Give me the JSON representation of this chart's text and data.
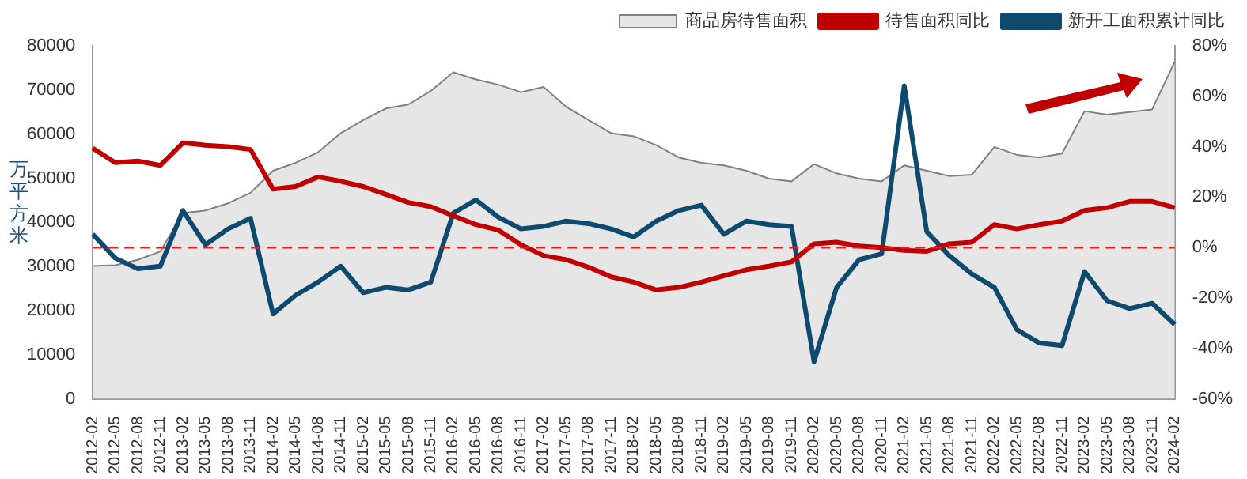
{
  "chart_data": {
    "type": "line",
    "ylabel": "万平方米",
    "categories": [
      "2012-02",
      "2012-05",
      "2012-08",
      "2012-11",
      "2013-02",
      "2013-05",
      "2013-08",
      "2013-11",
      "2014-02",
      "2014-05",
      "2014-08",
      "2014-11",
      "2015-02",
      "2015-05",
      "2015-08",
      "2015-11",
      "2016-02",
      "2016-05",
      "2016-08",
      "2016-11",
      "2017-02",
      "2017-05",
      "2017-08",
      "2017-11",
      "2018-02",
      "2018-05",
      "2018-08",
      "2018-11",
      "2019-02",
      "2019-05",
      "2019-08",
      "2019-11",
      "2020-02",
      "2020-05",
      "2020-08",
      "2020-11",
      "2021-02",
      "2021-05",
      "2021-08",
      "2021-11",
      "2022-02",
      "2022-05",
      "2022-08",
      "2022-11",
      "2023-02",
      "2023-05",
      "2023-08",
      "2023-11",
      "2024-02"
    ],
    "series": [
      {
        "name": "商品房待售面积",
        "type": "area",
        "axis": "y",
        "color": "#e6e6e6",
        "values": [
          30100,
          30300,
          31500,
          33400,
          42100,
          42700,
          44300,
          46700,
          51700,
          53500,
          55900,
          60200,
          63200,
          65800,
          66700,
          69800,
          74000,
          72400,
          71200,
          69500,
          70700,
          66200,
          63200,
          60200,
          59500,
          57500,
          54700,
          53500,
          52900,
          51700,
          49900,
          49300,
          53200,
          51100,
          49900,
          49300,
          52900,
          51700,
          50500,
          50800,
          57100,
          55300,
          54700,
          55600,
          65200,
          64400,
          65000,
          65600,
          76400
        ]
      },
      {
        "name": "待售面积同比",
        "axis": "y2",
        "color": "#c00000",
        "values": [
          39.4,
          33.7,
          34.3,
          32.6,
          41.5,
          40.6,
          40.0,
          38.9,
          23.2,
          24.2,
          28.0,
          26.3,
          24.2,
          21.1,
          17.9,
          16.2,
          12.6,
          9.1,
          6.9,
          1.1,
          -3.2,
          -4.8,
          -7.8,
          -11.6,
          -13.7,
          -16.8,
          -15.8,
          -13.7,
          -11.2,
          -8.8,
          -7.4,
          -5.7,
          1.5,
          2.1,
          0.6,
          0,
          -1.1,
          -1.5,
          1.5,
          2.1,
          9.1,
          7.4,
          9.1,
          10.5,
          14.7,
          15.8,
          18.3,
          18.3,
          15.8
        ]
      },
      {
        "name": "新开工面积累计同比",
        "axis": "y2",
        "color": "#0e4a6e",
        "values": [
          5.3,
          -4.2,
          -8.4,
          -7.4,
          14.7,
          1.1,
          7.4,
          11.6,
          -26.3,
          -18.9,
          -13.7,
          -7.4,
          -17.9,
          -15.8,
          -16.8,
          -13.7,
          13.7,
          18.9,
          12.0,
          7.4,
          8.4,
          10.5,
          9.5,
          7.4,
          4.2,
          10.5,
          14.7,
          16.8,
          5.3,
          10.5,
          9.1,
          8.4,
          -45.3,
          -15.8,
          -4.8,
          -2.5,
          64.2,
          6.3,
          -3.2,
          -10.5,
          -15.8,
          -32.6,
          -37.9,
          -38.9,
          -9.5,
          -21.1,
          -24.2,
          -22.1,
          -30.5
        ]
      }
    ],
    "ylim": [
      0,
      80000
    ],
    "yticks": [
      0,
      10000,
      20000,
      30000,
      40000,
      50000,
      60000,
      70000,
      80000
    ],
    "y2lim": [
      -60,
      80
    ],
    "y2ticks": [
      {
        "value": -60,
        "label": "-60%"
      },
      {
        "value": -40,
        "label": "-40%"
      },
      {
        "value": -20,
        "label": "-20%"
      },
      {
        "value": 0,
        "label": "0%"
      },
      {
        "value": 20,
        "label": "20%"
      },
      {
        "value": 40,
        "label": "40%"
      },
      {
        "value": 60,
        "label": "60%"
      },
      {
        "value": 80,
        "label": "80%"
      }
    ],
    "ref_lines": [
      {
        "axis": "y2",
        "value": 0,
        "color": "#e02020",
        "line_style": "dashed"
      }
    ],
    "grid": false,
    "legend": "top right",
    "marker": "none",
    "line_style": "solid"
  }
}
